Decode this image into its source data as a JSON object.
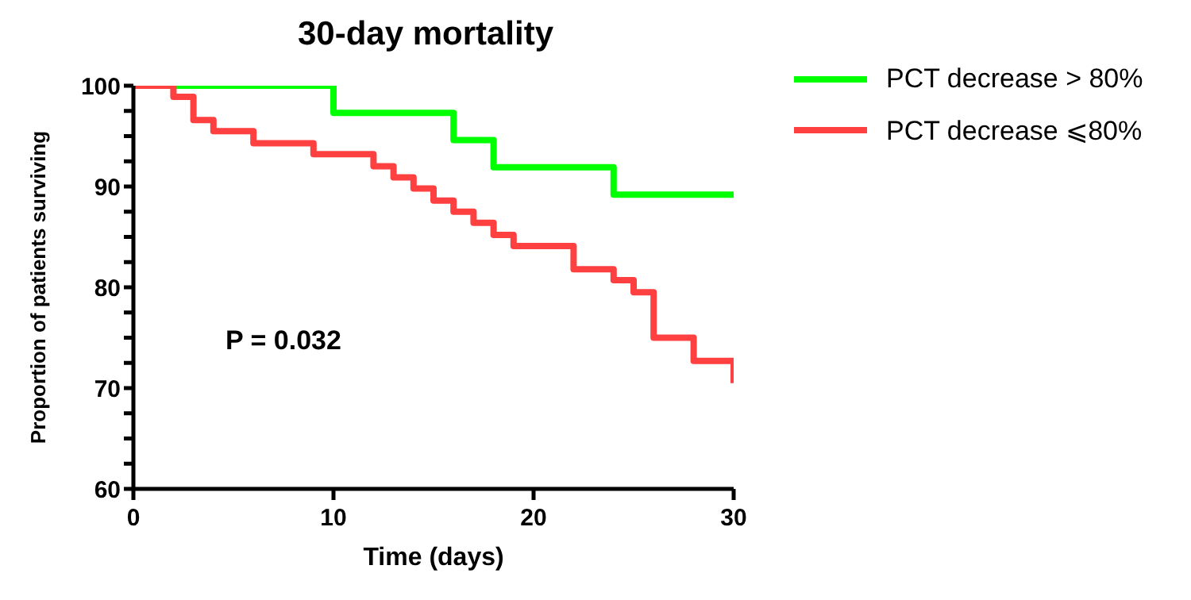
{
  "chart_data": {
    "type": "step",
    "title": "30-day mortality",
    "xlabel": "Time (days)",
    "ylabel": "Proportion of patients surviving",
    "xlim": [
      0,
      30
    ],
    "xticks": [
      0,
      10,
      20,
      30
    ],
    "ylim": [
      60,
      100
    ],
    "yticks": [
      60,
      {
        "value": 62.5,
        "label": null
      },
      {
        "value": 65,
        "label": null
      },
      {
        "value": 67.5,
        "label": null
      },
      70,
      {
        "value": 72.5,
        "label": null
      },
      {
        "value": 75,
        "label": null
      },
      {
        "value": 77.5,
        "label": null
      },
      80,
      {
        "value": 82.5,
        "label": null
      },
      {
        "value": 85,
        "label": null
      },
      {
        "value": 87.5,
        "label": null
      },
      90,
      {
        "value": 92.5,
        "label": null
      },
      {
        "value": 95,
        "label": null
      },
      {
        "value": 97.5,
        "label": null
      },
      100
    ],
    "legend": "top right",
    "marker": "none",
    "line_style": "solid",
    "annotations": [
      "P = 0.032"
    ],
    "series": [
      {
        "name": "PCT decrease > 80%",
        "color": "#00ff00",
        "x": [
          0,
          10,
          16,
          18,
          24,
          30
        ],
        "values": [
          100,
          97.3,
          94.6,
          91.9,
          89.2,
          89.2
        ]
      },
      {
        "name": "PCT decrease ⩽80%",
        "color": "#ff4040",
        "x": [
          0,
          2,
          3,
          4,
          6,
          9,
          12,
          13,
          14,
          15,
          16,
          17,
          18,
          19,
          22,
          24,
          25,
          26,
          28,
          30
        ],
        "values": [
          100,
          98.9,
          96.6,
          95.5,
          94.3,
          93.2,
          92.0,
          90.9,
          89.8,
          88.6,
          87.5,
          86.4,
          85.2,
          84.1,
          81.8,
          80.7,
          79.5,
          75.0,
          72.7,
          70.5
        ]
      }
    ]
  }
}
